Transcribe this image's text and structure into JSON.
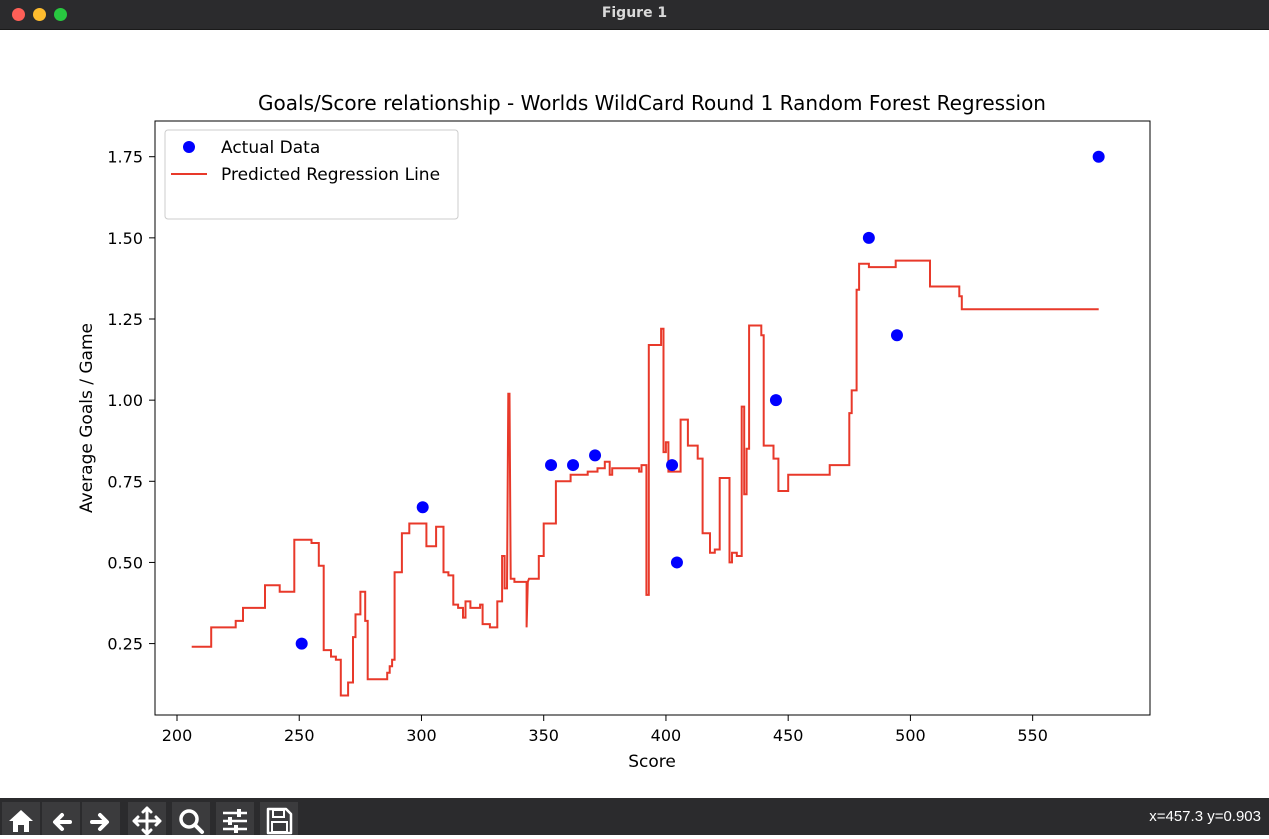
{
  "window": {
    "title": "Figure 1"
  },
  "toolbar": {
    "buttons": [
      {
        "icon": "home-icon"
      },
      {
        "icon": "back-arrow-icon"
      },
      {
        "icon": "forward-arrow-icon"
      },
      {
        "icon": "pan-icon"
      },
      {
        "icon": "zoom-icon"
      },
      {
        "icon": "configure-subplots-icon"
      },
      {
        "icon": "save-icon"
      }
    ],
    "coords": "x=457.3 y=0.903"
  },
  "chart_data": {
    "type": "scatter",
    "title": "Goals/Score relationship - Worlds WildCard Round 1 Random Forest Regression",
    "xlabel": "Score",
    "ylabel": "Average Goals / Game",
    "xlim": [
      191,
      598
    ],
    "ylim": [
      0.03,
      1.86
    ],
    "xticks": [
      200,
      250,
      300,
      350,
      400,
      450,
      500,
      550
    ],
    "xtick_labels": [
      "200",
      "250",
      "300",
      "350",
      "400",
      "450",
      "500",
      "550"
    ],
    "yticks": [
      0.25,
      0.5,
      0.75,
      1.0,
      1.25,
      1.5,
      1.75
    ],
    "ytick_labels": [
      "0.25",
      "0.50",
      "0.75",
      "1.00",
      "1.25",
      "1.50",
      "1.75"
    ],
    "grid": false,
    "legend_position": "top-left",
    "series": [
      {
        "name": "Actual Data",
        "kind": "scatter",
        "color": "#0000ff",
        "points": [
          [
            251,
            0.25
          ],
          [
            300.5,
            0.67
          ],
          [
            353,
            0.8
          ],
          [
            362,
            0.8
          ],
          [
            371,
            0.83
          ],
          [
            402.5,
            0.8
          ],
          [
            404.5,
            0.5
          ],
          [
            445,
            1.0
          ],
          [
            483,
            1.5
          ],
          [
            494.5,
            1.2
          ],
          [
            577,
            1.75
          ]
        ]
      },
      {
        "name": "Predicted Regression Line",
        "kind": "line",
        "color": "#e8392a",
        "points": [
          [
            206,
            0.24
          ],
          [
            214,
            0.24
          ],
          [
            214,
            0.3
          ],
          [
            224,
            0.3
          ],
          [
            224,
            0.32
          ],
          [
            227,
            0.32
          ],
          [
            227,
            0.36
          ],
          [
            236,
            0.36
          ],
          [
            236,
            0.43
          ],
          [
            242,
            0.43
          ],
          [
            242,
            0.41
          ],
          [
            246,
            0.41
          ],
          [
            246,
            0.41
          ],
          [
            248,
            0.41
          ],
          [
            248,
            0.57
          ],
          [
            255,
            0.57
          ],
          [
            255,
            0.56
          ],
          [
            258,
            0.56
          ],
          [
            258,
            0.49
          ],
          [
            260,
            0.49
          ],
          [
            260,
            0.23
          ],
          [
            263,
            0.23
          ],
          [
            263,
            0.21
          ],
          [
            265,
            0.21
          ],
          [
            265,
            0.2
          ],
          [
            267,
            0.2
          ],
          [
            267,
            0.09
          ],
          [
            270,
            0.09
          ],
          [
            270,
            0.13
          ],
          [
            272,
            0.13
          ],
          [
            272,
            0.27
          ],
          [
            273,
            0.27
          ],
          [
            273,
            0.34
          ],
          [
            275,
            0.34
          ],
          [
            275,
            0.41
          ],
          [
            277,
            0.41
          ],
          [
            277,
            0.32
          ],
          [
            278,
            0.32
          ],
          [
            278,
            0.14
          ],
          [
            286,
            0.14
          ],
          [
            286,
            0.16
          ],
          [
            287,
            0.16
          ],
          [
            287,
            0.18
          ],
          [
            288,
            0.18
          ],
          [
            288,
            0.2
          ],
          [
            289,
            0.2
          ],
          [
            289,
            0.47
          ],
          [
            292,
            0.47
          ],
          [
            292,
            0.59
          ],
          [
            295,
            0.59
          ],
          [
            295,
            0.62
          ],
          [
            302,
            0.62
          ],
          [
            302,
            0.55
          ],
          [
            306,
            0.55
          ],
          [
            306,
            0.61
          ],
          [
            309,
            0.61
          ],
          [
            309,
            0.47
          ],
          [
            311,
            0.47
          ],
          [
            311,
            0.46
          ],
          [
            313,
            0.46
          ],
          [
            313,
            0.37
          ],
          [
            315,
            0.37
          ],
          [
            315,
            0.36
          ],
          [
            317,
            0.36
          ],
          [
            317,
            0.33
          ],
          [
            318,
            0.33
          ],
          [
            318,
            0.38
          ],
          [
            320,
            0.38
          ],
          [
            320,
            0.36
          ],
          [
            324,
            0.36
          ],
          [
            324,
            0.37
          ],
          [
            325,
            0.37
          ],
          [
            325,
            0.31
          ],
          [
            328,
            0.31
          ],
          [
            328,
            0.3
          ],
          [
            331,
            0.3
          ],
          [
            331,
            0.38
          ],
          [
            333,
            0.38
          ],
          [
            333,
            0.52
          ],
          [
            334,
            0.52
          ],
          [
            334,
            0.42
          ],
          [
            335,
            0.42
          ],
          [
            335.5,
            1.02
          ],
          [
            336,
            1.02
          ],
          [
            336.5,
            0.45
          ],
          [
            338,
            0.45
          ],
          [
            338,
            0.44
          ],
          [
            343,
            0.44
          ],
          [
            343,
            0.3
          ],
          [
            343.5,
            0.44
          ],
          [
            344,
            0.45
          ],
          [
            348,
            0.45
          ],
          [
            348,
            0.52
          ],
          [
            350,
            0.52
          ],
          [
            350,
            0.62
          ],
          [
            355,
            0.62
          ],
          [
            355,
            0.75
          ],
          [
            361,
            0.75
          ],
          [
            361,
            0.77
          ],
          [
            368,
            0.77
          ],
          [
            368,
            0.78
          ],
          [
            372,
            0.78
          ],
          [
            372,
            0.79
          ],
          [
            375,
            0.79
          ],
          [
            375,
            0.81
          ],
          [
            377,
            0.81
          ],
          [
            377,
            0.77
          ],
          [
            378,
            0.77
          ],
          [
            378,
            0.79
          ],
          [
            389,
            0.79
          ],
          [
            389,
            0.78
          ],
          [
            390,
            0.78
          ],
          [
            390,
            0.8
          ],
          [
            392,
            0.8
          ],
          [
            392,
            0.4
          ],
          [
            393,
            0.4
          ],
          [
            393,
            1.17
          ],
          [
            398,
            1.17
          ],
          [
            398,
            1.22
          ],
          [
            399,
            1.22
          ],
          [
            399,
            0.84
          ],
          [
            400,
            0.84
          ],
          [
            400,
            0.87
          ],
          [
            401,
            0.87
          ],
          [
            401,
            0.78
          ],
          [
            406,
            0.78
          ],
          [
            406,
            0.94
          ],
          [
            409,
            0.94
          ],
          [
            409,
            0.86
          ],
          [
            413,
            0.86
          ],
          [
            413,
            0.82
          ],
          [
            415,
            0.82
          ],
          [
            415,
            0.59
          ],
          [
            418,
            0.59
          ],
          [
            418,
            0.53
          ],
          [
            420,
            0.53
          ],
          [
            420,
            0.54
          ],
          [
            422,
            0.54
          ],
          [
            422,
            0.76
          ],
          [
            426,
            0.76
          ],
          [
            426,
            0.5
          ],
          [
            427,
            0.5
          ],
          [
            427,
            0.53
          ],
          [
            429,
            0.53
          ],
          [
            429,
            0.52
          ],
          [
            431,
            0.52
          ],
          [
            431,
            0.98
          ],
          [
            432,
            0.98
          ],
          [
            432,
            0.71
          ],
          [
            433,
            0.71
          ],
          [
            433,
            0.85
          ],
          [
            434,
            0.85
          ],
          [
            434,
            1.23
          ],
          [
            439,
            1.23
          ],
          [
            439,
            1.2
          ],
          [
            440,
            1.2
          ],
          [
            440,
            0.86
          ],
          [
            444,
            0.86
          ],
          [
            444,
            0.82
          ],
          [
            446,
            0.82
          ],
          [
            446,
            0.72
          ],
          [
            450,
            0.72
          ],
          [
            450,
            0.77
          ],
          [
            467,
            0.77
          ],
          [
            467,
            0.8
          ],
          [
            475,
            0.8
          ],
          [
            475,
            0.96
          ],
          [
            476,
            0.96
          ],
          [
            476,
            1.03
          ],
          [
            478,
            1.03
          ],
          [
            478,
            1.34
          ],
          [
            479,
            1.34
          ],
          [
            479,
            1.42
          ],
          [
            483,
            1.42
          ],
          [
            483,
            1.41
          ],
          [
            494,
            1.41
          ],
          [
            494,
            1.43
          ],
          [
            508,
            1.43
          ],
          [
            508,
            1.35
          ],
          [
            520,
            1.35
          ],
          [
            520,
            1.32
          ],
          [
            521,
            1.32
          ],
          [
            521,
            1.28
          ],
          [
            577,
            1.28
          ]
        ]
      }
    ]
  }
}
